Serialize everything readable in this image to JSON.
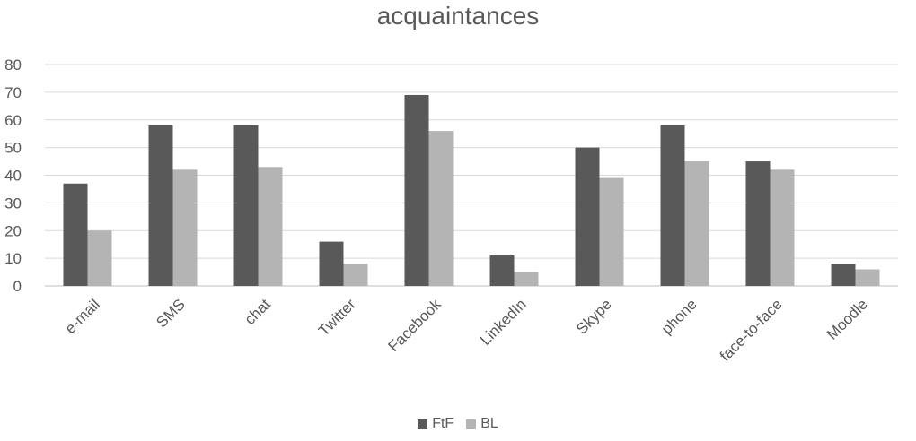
{
  "chart_data": {
    "type": "bar",
    "title": "acquaintances",
    "categories": [
      "e-mail",
      "SMS",
      "chat",
      "Twitter",
      "Facebook",
      "LinkedIn",
      "Skype",
      "phone",
      "face-to-face",
      "Moodle"
    ],
    "series": [
      {
        "name": "FtF",
        "color": "#595959",
        "values": [
          37,
          58,
          58,
          16,
          69,
          11,
          50,
          58,
          45,
          8
        ]
      },
      {
        "name": "BL",
        "color": "#B4B4B4",
        "values": [
          20,
          42,
          43,
          8,
          56,
          5,
          39,
          45,
          42,
          6
        ]
      }
    ],
    "ylim": [
      0,
      80
    ],
    "yticks": [
      0,
      10,
      20,
      30,
      40,
      50,
      60,
      70,
      80
    ],
    "grid": true,
    "legend_position": "bottom"
  }
}
